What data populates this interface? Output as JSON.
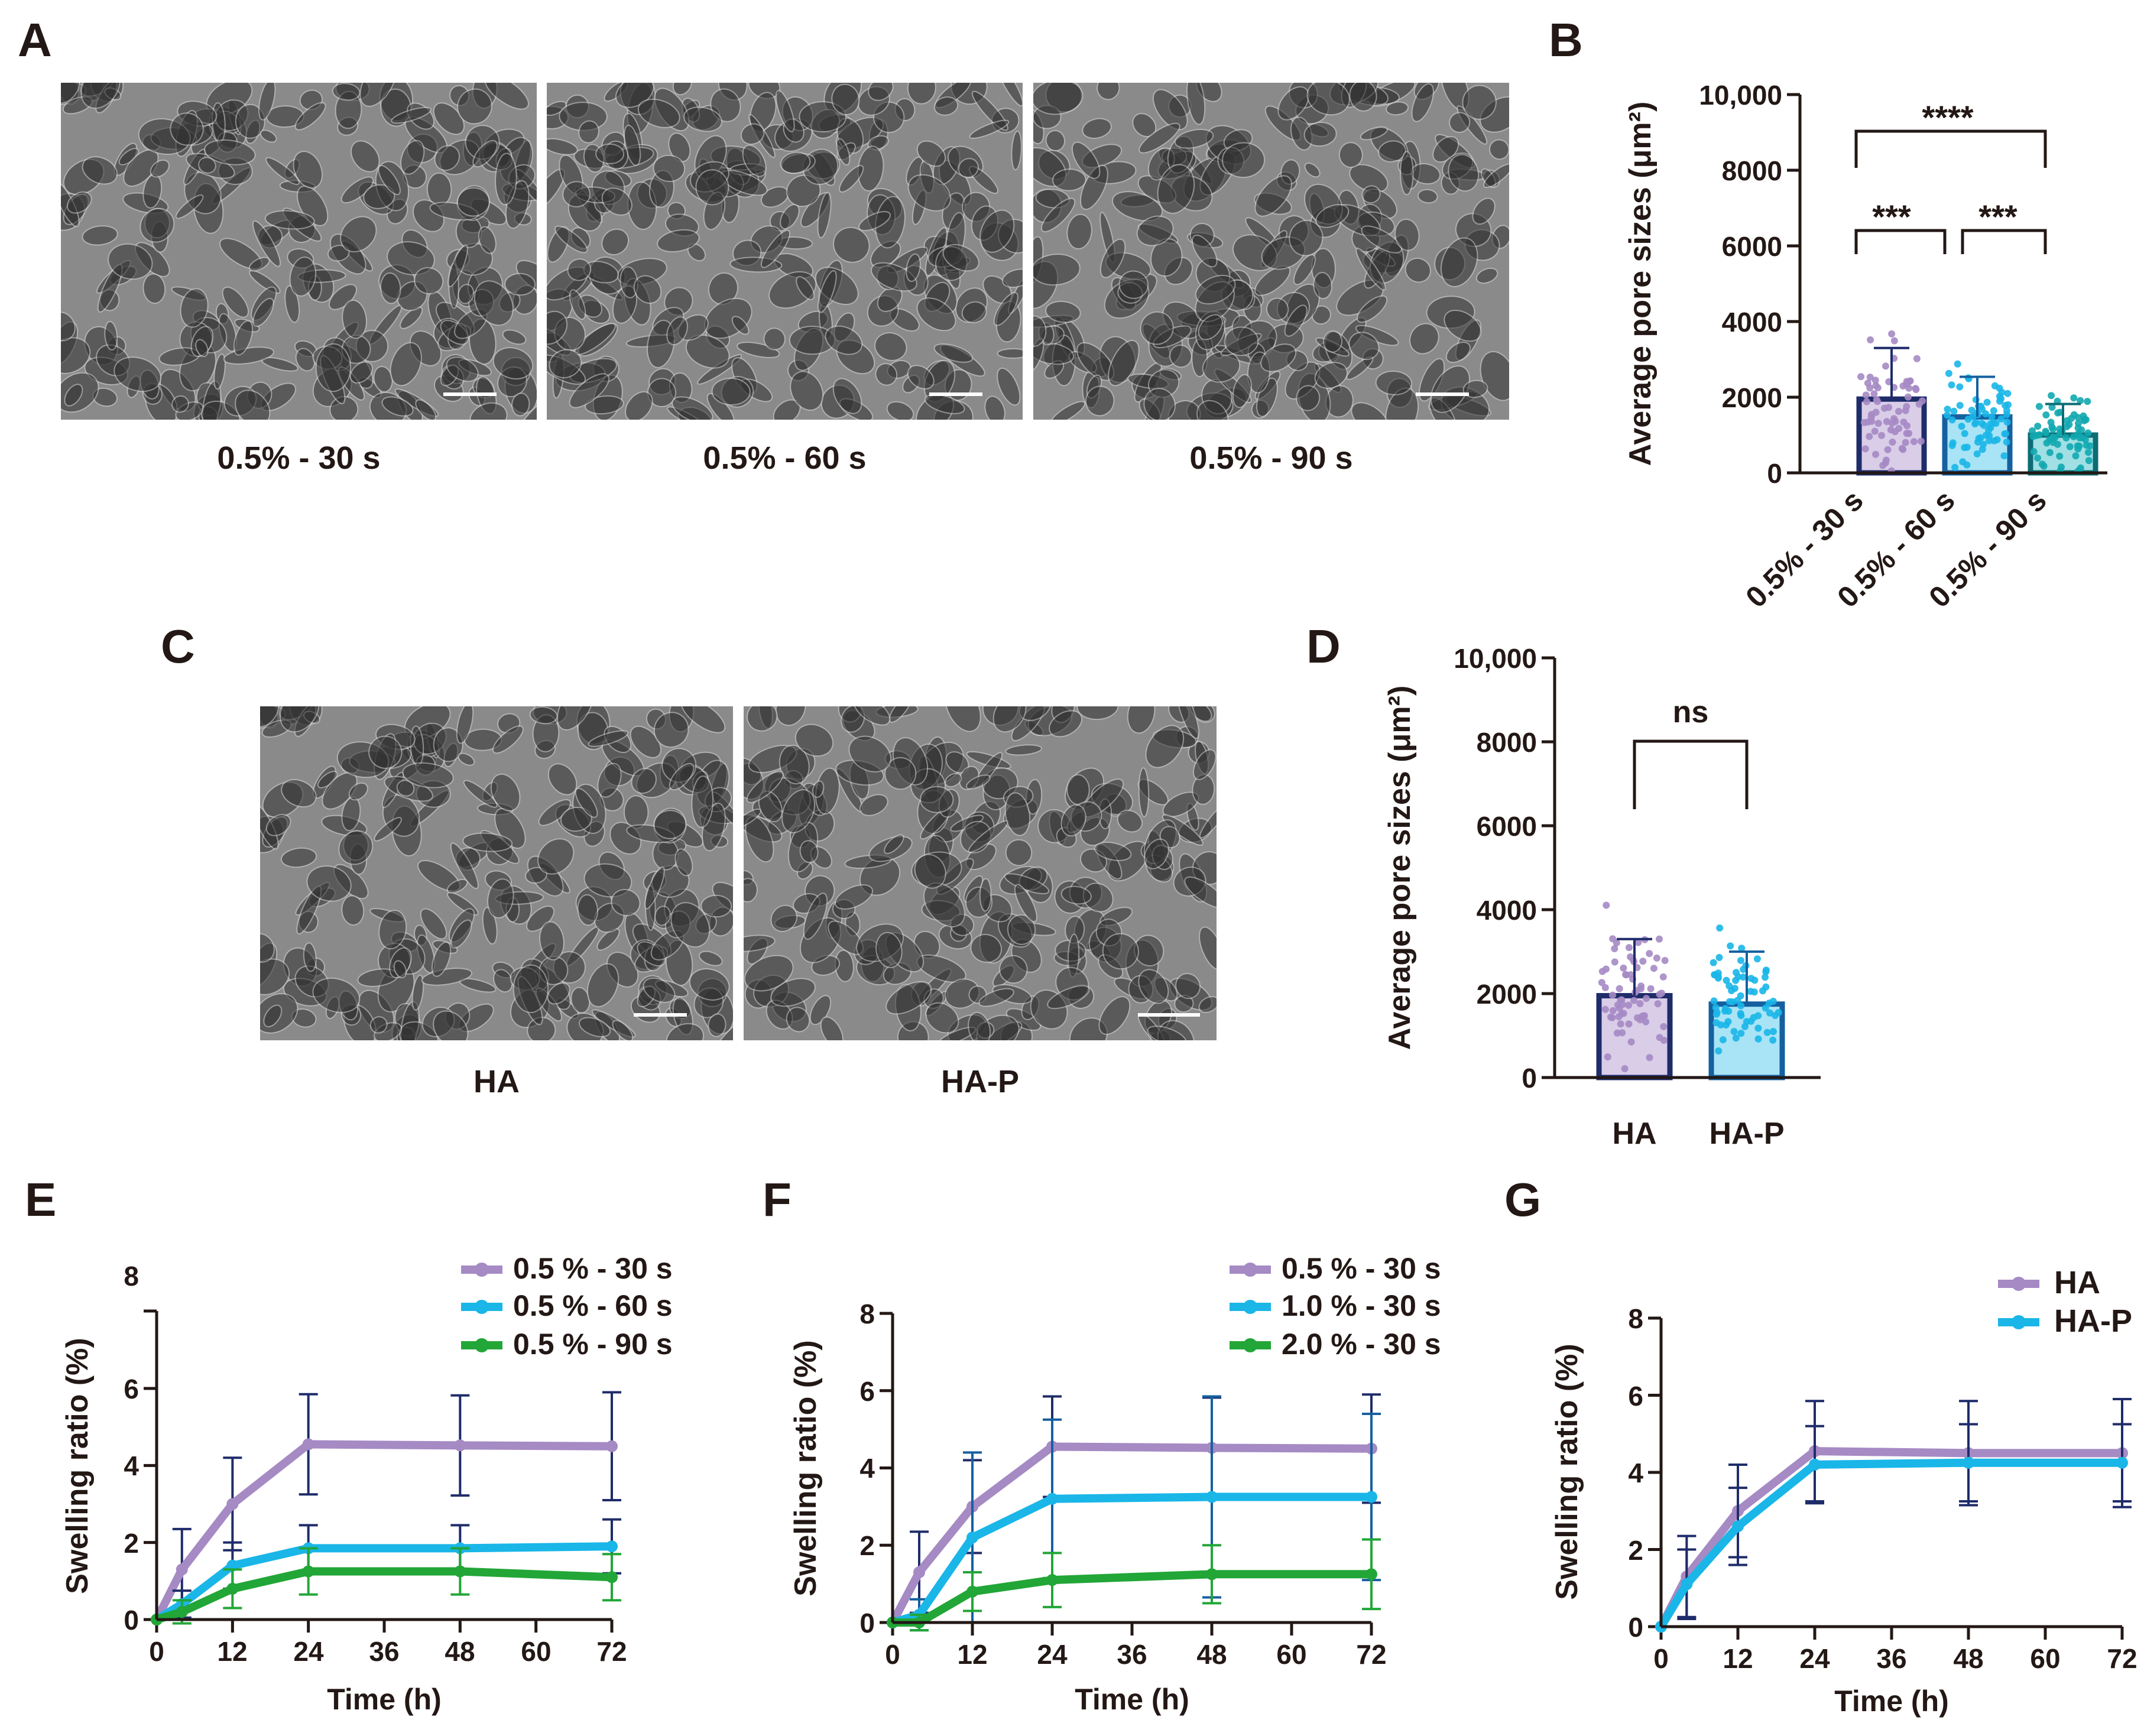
{
  "panels": {
    "A": "A",
    "B": "B",
    "C": "C",
    "D": "D",
    "E": "E",
    "F": "F",
    "G": "G"
  },
  "sem": {
    "A": [
      "0.5% - 30 s",
      "0.5% - 60 s",
      "0.5% - 90 s"
    ],
    "C": [
      "HA",
      "HA-P"
    ]
  },
  "colors": {
    "purple": "#a58ac4",
    "cyan": "#1ab6e8",
    "teal": "#12a8b0",
    "green": "#22a637",
    "navy": "#1f2c6a",
    "text": "#231815"
  },
  "chart_data": [
    {
      "id": "B",
      "type": "bar",
      "ylabel": "Average pore sizes (μm²)",
      "ylim": [
        0,
        10000
      ],
      "yticks": [
        "0",
        "2000",
        "4000",
        "6000",
        "8000",
        "10,000"
      ],
      "categories": [
        "0.5% - 30 s",
        "0.5% - 60 s",
        "0.5% - 90 s"
      ],
      "values": [
        1950,
        1480,
        1000
      ],
      "sd": [
        1350,
        1060,
        820
      ],
      "significance": [
        {
          "from": 0,
          "to": 2,
          "label": "****"
        },
        {
          "from": 0,
          "to": 1,
          "label": "***"
        },
        {
          "from": 1,
          "to": 2,
          "label": "***"
        }
      ]
    },
    {
      "id": "D",
      "type": "bar",
      "ylabel": "Average pore sizes (μm²)",
      "ylim": [
        0,
        10000
      ],
      "yticks": [
        "0",
        "2000",
        "4000",
        "6000",
        "8000",
        "10,000"
      ],
      "categories": [
        "HA",
        "HA-P"
      ],
      "values": [
        1950,
        1750
      ],
      "sd": [
        1350,
        1250
      ],
      "significance": [
        {
          "from": 0,
          "to": 1,
          "label": "ns"
        }
      ]
    },
    {
      "id": "E",
      "type": "line",
      "xlabel": "Time (h)",
      "ylabel": "Swelling ratio (%)",
      "xlim": [
        0,
        72
      ],
      "ylim": [
        0,
        8
      ],
      "xticks": [
        "0",
        "12",
        "24",
        "36",
        "48",
        "60",
        "72"
      ],
      "yticks": [
        "0",
        "2",
        "4",
        "6",
        "8"
      ],
      "x": [
        0,
        4,
        12,
        24,
        48,
        72
      ],
      "series": [
        {
          "name": "0.5 % - 30 s",
          "values": [
            0,
            1.3,
            3.0,
            4.55,
            4.52,
            4.5
          ],
          "err": [
            0,
            1.05,
            1.2,
            1.3,
            1.3,
            1.4
          ]
        },
        {
          "name": "0.5 % - 60 s",
          "values": [
            0,
            0.4,
            1.4,
            1.85,
            1.85,
            1.9
          ],
          "err": [
            0,
            0.35,
            0.6,
            0.6,
            0.6,
            0.7
          ]
        },
        {
          "name": "0.5 % - 90 s",
          "values": [
            0,
            0.2,
            0.8,
            1.25,
            1.25,
            1.1
          ],
          "err": [
            0,
            0.3,
            0.5,
            0.6,
            0.6,
            0.6
          ]
        }
      ]
    },
    {
      "id": "F",
      "type": "line",
      "xlabel": "Time (h)",
      "ylabel": "Swelling ratio (%)",
      "xlim": [
        0,
        72
      ],
      "ylim": [
        0,
        8
      ],
      "xticks": [
        "0",
        "12",
        "24",
        "36",
        "48",
        "60",
        "72"
      ],
      "yticks": [
        "0",
        "2",
        "4",
        "6",
        "8"
      ],
      "x": [
        0,
        4,
        12,
        24,
        48,
        72
      ],
      "series": [
        {
          "name": "0.5 % - 30 s",
          "values": [
            0,
            1.3,
            3.0,
            4.55,
            4.52,
            4.5
          ],
          "err": [
            0,
            1.05,
            1.2,
            1.3,
            1.3,
            1.4
          ]
        },
        {
          "name": "1.0 % - 30 s",
          "values": [
            0,
            0.2,
            2.2,
            3.2,
            3.25,
            3.25
          ],
          "err": [
            0,
            0.4,
            2.2,
            2.05,
            2.6,
            2.15
          ]
        },
        {
          "name": "2.0 % - 30 s",
          "values": [
            0,
            0.0,
            0.8,
            1.1,
            1.25,
            1.25
          ],
          "err": [
            0,
            0.2,
            0.5,
            0.7,
            0.75,
            0.9
          ]
        }
      ]
    },
    {
      "id": "G",
      "type": "line",
      "xlabel": "Time (h)",
      "ylabel": "Swelling ratio (%)",
      "xlim": [
        0,
        72
      ],
      "ylim": [
        0,
        8
      ],
      "xticks": [
        "0",
        "12",
        "24",
        "36",
        "48",
        "60",
        "72"
      ],
      "yticks": [
        "0",
        "2",
        "4",
        "6",
        "8"
      ],
      "x": [
        0,
        4,
        12,
        24,
        48,
        72
      ],
      "series": [
        {
          "name": "HA",
          "values": [
            0,
            1.3,
            3.0,
            4.55,
            4.5,
            4.5
          ],
          "err": [
            0,
            1.05,
            1.2,
            1.3,
            1.35,
            1.4
          ]
        },
        {
          "name": "HA-P",
          "values": [
            0,
            1.1,
            2.6,
            4.2,
            4.25,
            4.25
          ],
          "err": [
            0,
            0.9,
            1.0,
            1.0,
            1.0,
            1.0
          ]
        }
      ]
    }
  ]
}
